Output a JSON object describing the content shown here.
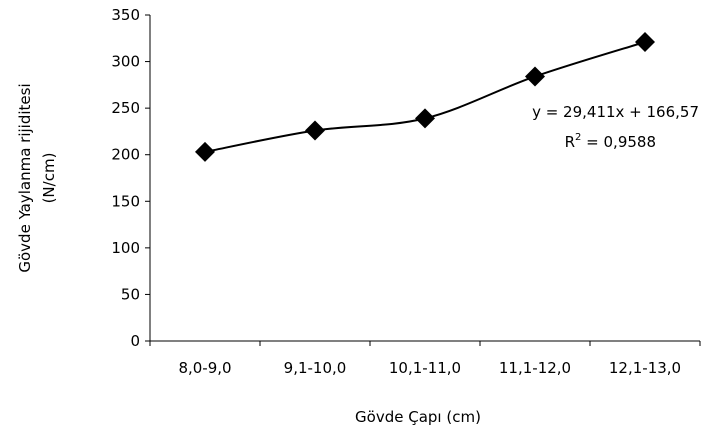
{
  "chart_data": {
    "type": "line",
    "categories": [
      "8,0-9,0",
      "9,1-10,0",
      "10,1-11,0",
      "11,1-12,0",
      "12,1-13,0"
    ],
    "series": [
      {
        "values": [
          203,
          226,
          239,
          284,
          321
        ],
        "marker": "diamond",
        "color": "#000000"
      }
    ],
    "xlabel": "Gövde Çapı (cm)",
    "ylabel_line1": "Gövde Yaylanma rijiditesi",
    "ylabel_line2": "(N/cm)",
    "ylim": [
      0,
      350
    ],
    "yticks": [
      "0",
      "50",
      "100",
      "150",
      "200",
      "250",
      "300",
      "350"
    ],
    "annotation": {
      "equation": "y = 29,411x + 166,57",
      "r2_prefix": "R",
      "r2_exp": "2",
      "r2_value": " = 0,9588"
    },
    "grid": false,
    "legend": "none"
  }
}
